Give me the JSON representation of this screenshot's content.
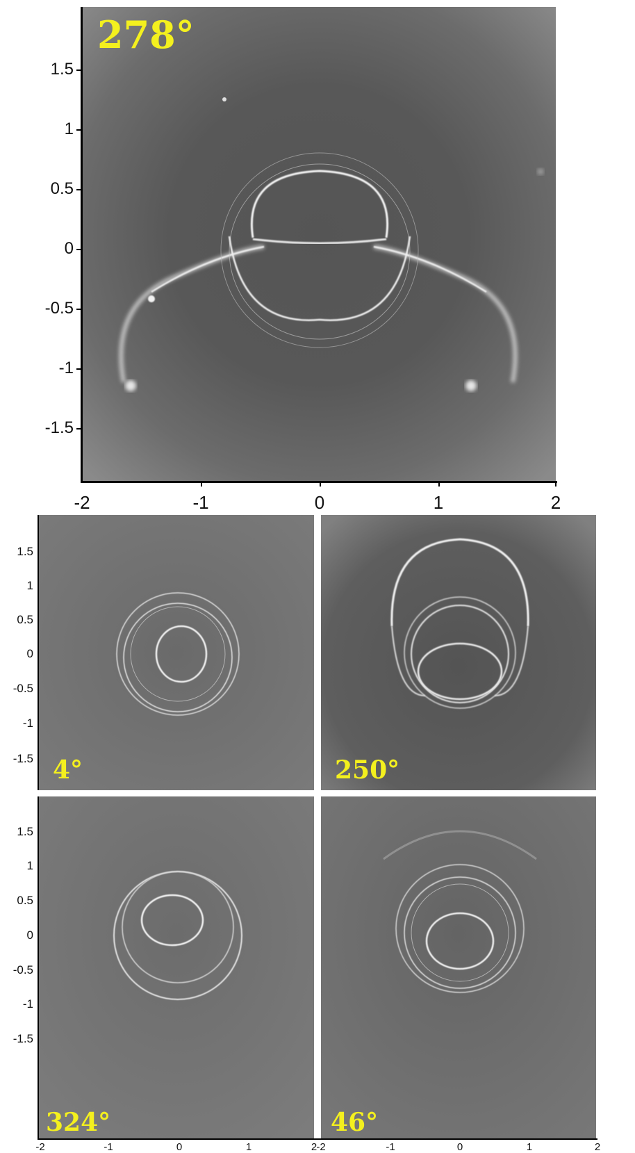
{
  "panels": {
    "main": {
      "angle_label": "278°"
    },
    "top_left": {
      "angle_label": "4°"
    },
    "top_right": {
      "angle_label": "250°"
    },
    "bottom_left": {
      "angle_label": "324°"
    },
    "bottom_right": {
      "angle_label": "46°"
    }
  },
  "main_axes": {
    "y_ticks": [
      "1.5",
      "1",
      "0.5",
      "0",
      "-0.5",
      "-1",
      "-1.5"
    ],
    "x_ticks": [
      "-2",
      "-1",
      "0",
      "1",
      "2"
    ]
  },
  "small_axes": {
    "left_y_ticks": [
      "1.5",
      "1",
      "0.5",
      "0",
      "-0.5",
      "-1",
      "-1.5"
    ],
    "bottom_left_y_ticks": [
      "1.5",
      "1",
      "0.5",
      "0",
      "-0.5",
      "-1",
      "-1.5"
    ],
    "bottom_x_ticks_left": [
      "-2",
      "-1",
      "0",
      "1",
      "2"
    ],
    "bottom_x_ticks_right": [
      "-2",
      "-1",
      "0",
      "1",
      "2"
    ]
  },
  "colors": {
    "label_yellow": "#f4f01e",
    "background_gray": "#6f6f6f",
    "ring_white": "#f2f2f2"
  }
}
